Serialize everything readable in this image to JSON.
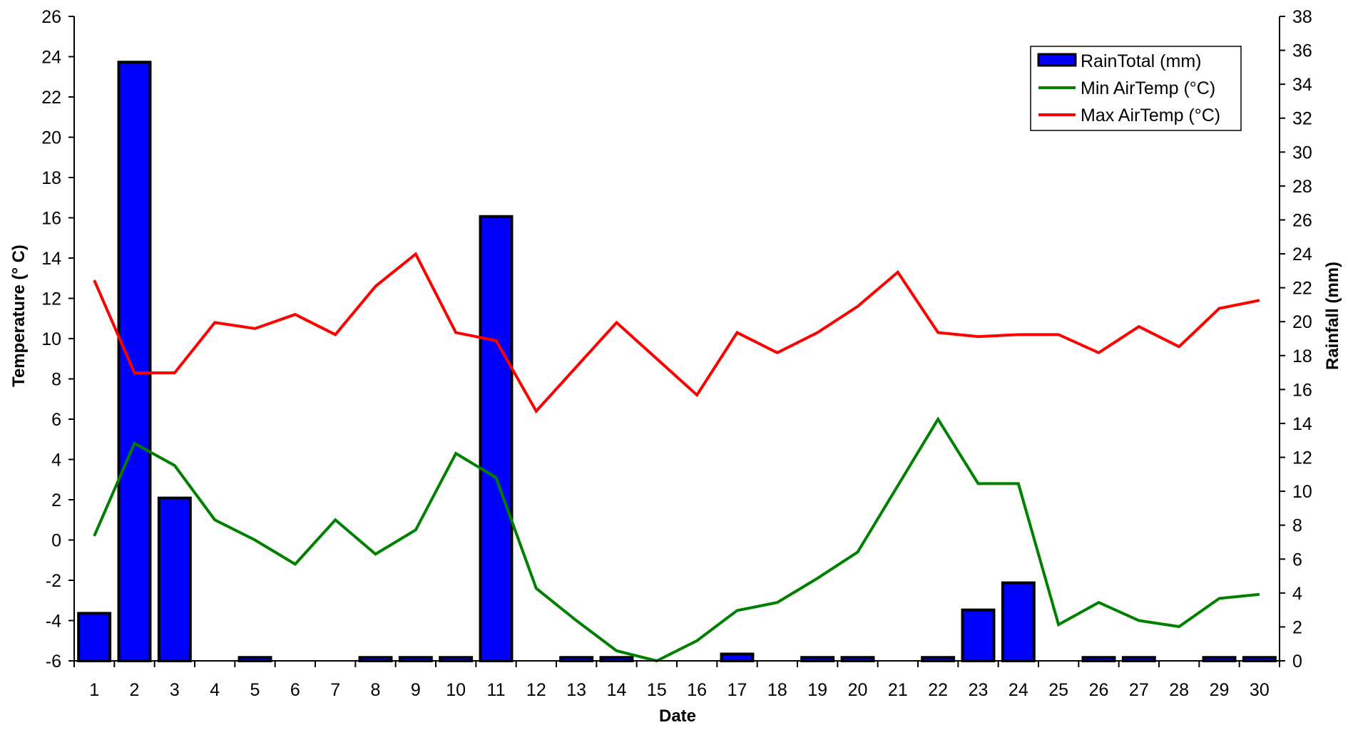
{
  "chart_data": {
    "type": "bar+line",
    "title": "",
    "xlabel": "Date",
    "ylabel_left": "Temperature (° C)",
    "ylabel_right": "Rainfall (mm)",
    "ylim_left": [
      -6,
      26
    ],
    "ylim_right": [
      0,
      38
    ],
    "yticks_left": [
      -6,
      -4,
      -2,
      0,
      2,
      4,
      6,
      8,
      10,
      12,
      14,
      16,
      18,
      20,
      22,
      24,
      26
    ],
    "yticks_right": [
      0,
      2,
      4,
      6,
      8,
      10,
      12,
      14,
      16,
      18,
      20,
      22,
      24,
      26,
      28,
      30,
      32,
      34,
      36,
      38
    ],
    "categories": [
      "1",
      "2",
      "3",
      "4",
      "5",
      "6",
      "7",
      "8",
      "9",
      "10",
      "11",
      "12",
      "13",
      "14",
      "15",
      "16",
      "17",
      "18",
      "19",
      "20",
      "21",
      "22",
      "23",
      "24",
      "25",
      "26",
      "27",
      "28",
      "29",
      "30"
    ],
    "grid": false,
    "legend_position": "top-right",
    "series": [
      {
        "name": "RainTotal (mm)",
        "type": "bar",
        "axis": "right",
        "color": "#0000ff",
        "values": [
          2.8,
          35.3,
          9.6,
          0,
          0.2,
          0,
          0,
          0.2,
          0.2,
          0.2,
          26.2,
          0,
          0.2,
          0.2,
          0,
          0,
          0.4,
          0,
          0.2,
          0.2,
          0,
          0.2,
          3.0,
          4.6,
          0,
          0.2,
          0.2,
          0,
          0.2,
          0.2
        ]
      },
      {
        "name": "Min AirTemp (°C)",
        "type": "line",
        "axis": "left",
        "color": "#008000",
        "values": [
          0.2,
          4.8,
          3.7,
          1.0,
          0.0,
          -1.2,
          1.0,
          -0.7,
          0.5,
          4.3,
          3.1,
          -2.4,
          -4.0,
          -5.5,
          -6.0,
          -5.0,
          -3.5,
          -3.1,
          -1.9,
          -0.6,
          2.7,
          6.0,
          2.8,
          2.8,
          -4.2,
          -3.1,
          -4.0,
          -4.3,
          -2.9,
          -2.7
        ]
      },
      {
        "name": "Max AirTemp (°C)",
        "type": "line",
        "axis": "left",
        "color": "#ff0000",
        "values": [
          12.9,
          8.3,
          8.3,
          10.8,
          10.5,
          11.2,
          10.2,
          12.6,
          14.2,
          10.3,
          9.9,
          6.4,
          8.6,
          10.8,
          9.0,
          7.2,
          10.3,
          9.3,
          10.3,
          11.6,
          13.3,
          10.3,
          10.1,
          10.2,
          10.2,
          9.3,
          10.6,
          9.6,
          11.5,
          11.9
        ]
      }
    ]
  }
}
